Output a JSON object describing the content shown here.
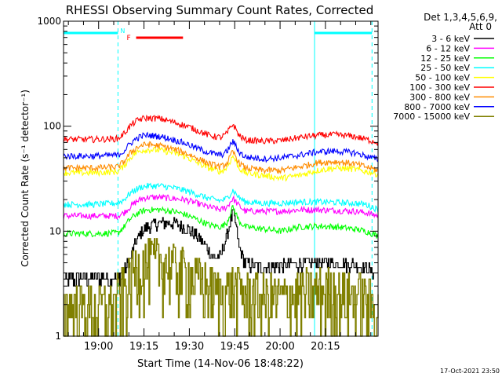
{
  "chart_data": {
    "type": "line",
    "title": "RHESSI Observing Summary Count Rates, Corrected",
    "xlabel": "Start Time (14-Nov-06 18:48:22)",
    "ylabel": "Corrected Count Rate (s⁻¹ detector⁻¹)",
    "yscale": "log",
    "ylim": [
      1,
      1000
    ],
    "xlim_minutes_after_1848": [
      0,
      104
    ],
    "x_tick_labels": [
      "19:00",
      "19:15",
      "19:30",
      "19:45",
      "20:00",
      "20:15"
    ],
    "x_tick_minutes": [
      11.6,
      26.6,
      41.6,
      56.6,
      71.6,
      86.6
    ],
    "y_tick_labels": [
      "1",
      "10",
      "100",
      "1000"
    ],
    "y_tick_values": [
      1,
      10,
      100,
      1000
    ],
    "legend_header": [
      "Det 1,3,4,5,6,9,",
      "Att 0"
    ],
    "legend_position": "right",
    "timestamp": "17-Oct-2021 23:50",
    "annotations": {
      "night_markers": {
        "label": "N",
        "color": "#00ffff",
        "segments": [
          [
            0,
            18
          ],
          [
            83,
            102
          ]
        ]
      },
      "flare_marker": {
        "label": "F",
        "color": "#ff0000",
        "segment": [
          24,
          39.5
        ]
      },
      "saa_lines_min": [
        0,
        18,
        83,
        102
      ]
    },
    "series": [
      {
        "name": "3 - 6 keV",
        "color": "#000000",
        "times": [
          0,
          5,
          10,
          15,
          18,
          20,
          22,
          24,
          26,
          28,
          32,
          36,
          40,
          44,
          48,
          50,
          52,
          54,
          56,
          58,
          60,
          64,
          70,
          74,
          78,
          84,
          90,
          96,
          100,
          104
        ],
        "values": [
          3.5,
          3.5,
          3.6,
          3.5,
          3.6,
          4.2,
          5.5,
          8,
          10,
          11,
          12,
          12,
          11,
          9,
          6.5,
          5.5,
          5.8,
          9,
          15,
          7,
          5,
          4.5,
          4.6,
          4.8,
          4.9,
          5,
          5,
          4.8,
          4.4,
          3.8
        ]
      },
      {
        "name": "6 - 12 keV",
        "color": "#ff00ff",
        "times": [
          0,
          10,
          18,
          20,
          22,
          24,
          26,
          28,
          32,
          36,
          40,
          44,
          48,
          52,
          54,
          56,
          58,
          60,
          66,
          72,
          78,
          84,
          90,
          96,
          100,
          104
        ],
        "values": [
          14,
          14,
          14,
          15,
          17,
          19,
          20.5,
          21,
          21,
          20.5,
          20,
          18.5,
          17,
          16,
          17,
          20.5,
          17.5,
          15.5,
          15.5,
          15.5,
          16,
          16,
          15.8,
          15.5,
          15,
          14
        ]
      },
      {
        "name": "12 - 25 keV",
        "color": "#00ff00",
        "times": [
          0,
          10,
          18,
          20,
          22,
          24,
          26,
          28,
          32,
          36,
          40,
          44,
          48,
          52,
          54,
          56,
          58,
          60,
          66,
          72,
          78,
          84,
          90,
          96,
          100,
          104
        ],
        "values": [
          9.5,
          9.5,
          9.6,
          11,
          13,
          14.5,
          15.5,
          16,
          16,
          15.5,
          14.5,
          13,
          11.5,
          11,
          12,
          17,
          12.5,
          11,
          10.5,
          10,
          11,
          11.2,
          11,
          10.5,
          10,
          9
        ]
      },
      {
        "name": "25 - 50 keV",
        "color": "#00ffff",
        "times": [
          0,
          10,
          18,
          20,
          22,
          24,
          26,
          28,
          32,
          36,
          40,
          44,
          48,
          52,
          54,
          56,
          58,
          60,
          66,
          72,
          78,
          84,
          90,
          96,
          100,
          104
        ],
        "values": [
          18,
          18,
          18.5,
          20,
          23,
          25,
          26.5,
          27,
          27,
          26,
          24.5,
          22.5,
          20.5,
          19.5,
          20.5,
          24.5,
          21,
          19,
          18.5,
          18.5,
          19,
          19,
          18.8,
          18.5,
          18,
          16
        ]
      },
      {
        "name": "50 - 100 keV",
        "color": "#ffff00",
        "times": [
          0,
          10,
          18,
          20,
          22,
          24,
          26,
          28,
          32,
          36,
          40,
          44,
          48,
          52,
          54,
          56,
          58,
          60,
          66,
          72,
          78,
          84,
          90,
          96,
          100,
          104
        ],
        "values": [
          36,
          36,
          37,
          42,
          50,
          56,
          59,
          60,
          59,
          56,
          52,
          45,
          40,
          37,
          40,
          52,
          40,
          36,
          34,
          32,
          34,
          38,
          40,
          39,
          37,
          35
        ]
      },
      {
        "name": "100 - 300 keV",
        "color": "#ff0000",
        "times": [
          0,
          10,
          18,
          20,
          22,
          24,
          26,
          28,
          32,
          36,
          40,
          44,
          48,
          52,
          54,
          56,
          58,
          60,
          66,
          72,
          78,
          84,
          90,
          96,
          100,
          104
        ],
        "values": [
          75,
          75,
          76,
          85,
          100,
          112,
          118,
          120,
          118,
          110,
          102,
          92,
          82,
          78,
          85,
          105,
          82,
          74,
          72,
          73,
          78,
          82,
          83,
          80,
          75,
          70
        ]
      },
      {
        "name": "300 - 800 keV",
        "color": "#ff8c00",
        "times": [
          0,
          10,
          18,
          20,
          22,
          24,
          26,
          28,
          32,
          36,
          40,
          44,
          48,
          52,
          54,
          56,
          58,
          60,
          66,
          72,
          78,
          84,
          90,
          96,
          100,
          104
        ],
        "values": [
          40,
          40,
          41,
          46,
          55,
          62,
          66,
          67,
          65,
          61,
          56,
          50,
          44,
          41,
          44,
          57,
          45,
          40,
          38,
          38,
          41,
          45,
          46,
          44,
          41,
          38
        ]
      },
      {
        "name": "800 - 7000 keV",
        "color": "#0000ff",
        "times": [
          0,
          10,
          18,
          20,
          22,
          24,
          26,
          28,
          32,
          36,
          40,
          44,
          48,
          52,
          54,
          56,
          58,
          60,
          66,
          72,
          78,
          84,
          90,
          96,
          100,
          104
        ],
        "values": [
          52,
          52,
          53,
          58,
          68,
          76,
          81,
          82,
          80,
          75,
          69,
          62,
          56,
          53,
          57,
          72,
          57,
          51,
          49,
          50,
          53,
          57,
          58,
          56,
          52,
          48
        ]
      },
      {
        "name": "7000 - 15000 keV",
        "color": "#808000",
        "times": [
          0,
          8,
          16,
          18,
          20,
          22,
          24,
          28,
          32,
          36,
          40,
          44,
          48,
          52,
          56,
          60,
          66,
          72,
          78,
          84,
          90,
          96,
          100,
          104
        ],
        "values": [
          1.6,
          1.6,
          1.7,
          2,
          2.5,
          3,
          4,
          4.5,
          4.5,
          4,
          3.5,
          3,
          2.5,
          2.2,
          2.5,
          2.2,
          2,
          2,
          2.2,
          2.3,
          2.3,
          2.2,
          2,
          1.6
        ]
      }
    ]
  }
}
